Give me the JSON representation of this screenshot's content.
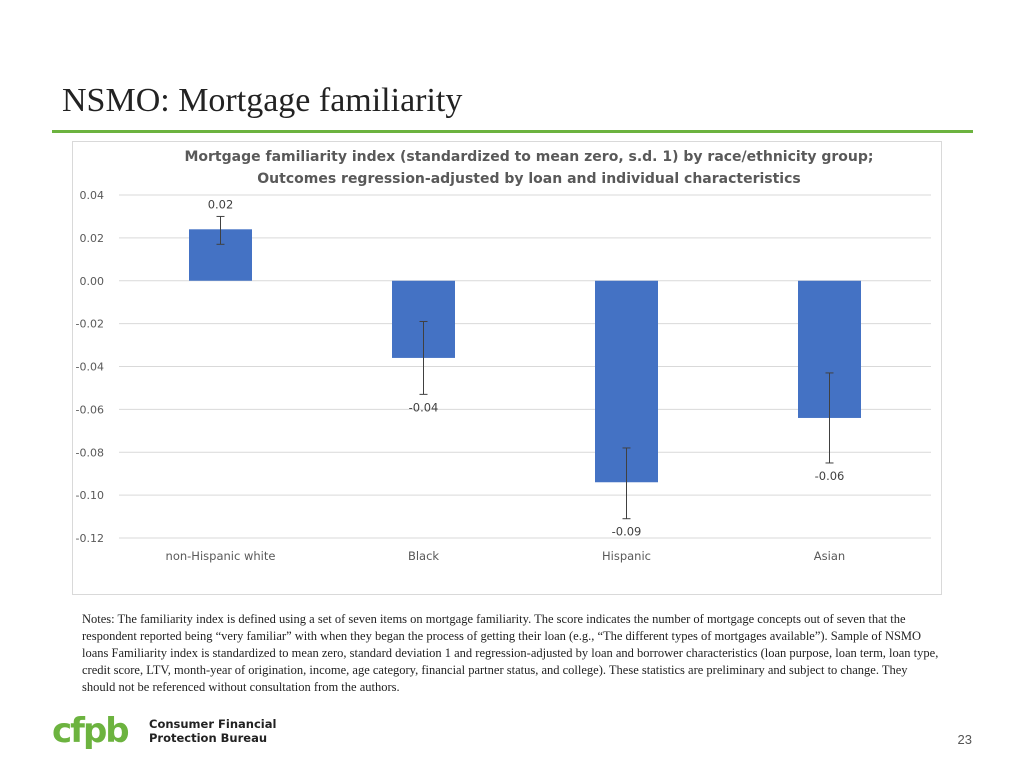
{
  "slide": {
    "title": "NSMO: Mortgage familiarity",
    "notes": "Notes: The familiarity index is defined using a set of seven items on mortgage familiarity. The score indicates the number of mortgage concepts out of seven that the respondent reported being “very familiar” with when they began the process of getting their loan (e.g., “The different types of mortgages available”). Sample of NSMO loans Familiarity index is standardized to mean zero, standard deviation 1 and regression-adjusted by loan and borrower characteristics (loan purpose, loan term, loan type, credit score, LTV, month-year of origination, income, age category, financial partner status, and college). These statistics are preliminary and subject to change. They should not be referenced without consultation from the authors.",
    "page_number": "23",
    "logo": {
      "mark": "cfpb",
      "line1": "Consumer Financial",
      "line2": "Protection Bureau",
      "color": "#6cb33f"
    }
  },
  "chart_data": {
    "type": "bar",
    "title_line1": "Mortgage familiarity index (standardized to mean zero, s.d. 1) by race/ethnicity group;",
    "title_line2": "Outcomes regression-adjusted by loan and individual characteristics",
    "categories": [
      "non-Hispanic white",
      "Black",
      "Hispanic",
      "Asian"
    ],
    "values": [
      0.024,
      -0.036,
      -0.094,
      -0.064
    ],
    "error_low": [
      0.017,
      -0.053,
      -0.111,
      -0.085
    ],
    "error_high": [
      0.03,
      -0.019,
      -0.078,
      -0.043
    ],
    "data_labels": [
      "0.02",
      "-0.04",
      "-0.09",
      "-0.06"
    ],
    "yticks": [
      0.04,
      0.02,
      0.0,
      -0.02,
      -0.04,
      -0.06,
      -0.08,
      -0.1,
      -0.12
    ],
    "ytick_labels": [
      "0.04",
      "0.02",
      "0.00",
      "-0.02",
      "-0.04",
      "-0.06",
      "-0.08",
      "-0.10",
      "-0.12"
    ],
    "ylim": [
      -0.12,
      0.04
    ],
    "grid": true,
    "bar_color": "#4472c4",
    "xlabel": "",
    "ylabel": ""
  }
}
